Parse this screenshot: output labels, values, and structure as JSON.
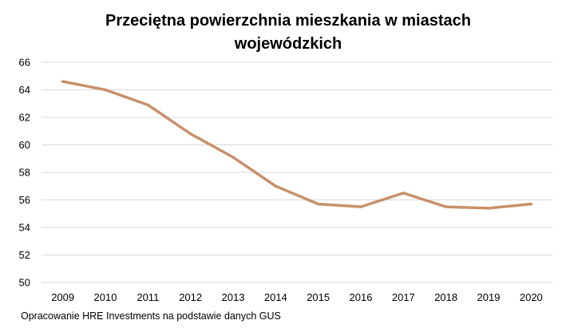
{
  "chart_data": {
    "type": "line",
    "title_lines": [
      "Przeciętna powierzchnia mieszkania w miastach",
      "wojewódzkich"
    ],
    "xlabel": "",
    "ylabel": "",
    "categories": [
      "2009",
      "2010",
      "2011",
      "2012",
      "2013",
      "2014",
      "2015",
      "2016",
      "2017",
      "2018",
      "2019",
      "2020"
    ],
    "series": [
      {
        "values": [
          64.6,
          64.0,
          62.9,
          60.8,
          59.1,
          57.0,
          55.7,
          55.5,
          56.5,
          55.5,
          55.4,
          55.7
        ],
        "color": "#c8916a"
      }
    ],
    "ylim": [
      50,
      66
    ],
    "yticks": [
      50,
      52,
      54,
      56,
      58,
      60,
      62,
      64,
      66
    ],
    "grid": true,
    "legend": "none"
  },
  "source_note": "Opracowanie HRE Investments na podstawie danych GUS"
}
